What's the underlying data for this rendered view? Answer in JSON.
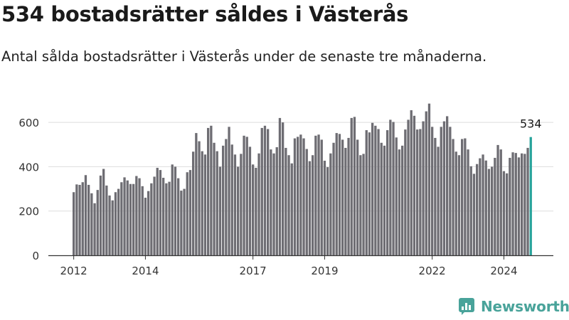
{
  "header": {
    "title": "534 bostadsrätter såldes i Västerås",
    "subtitle": "Antal sålda bostadsrätter i Västerås under de senaste tre månaderna."
  },
  "brand": {
    "name": "Newsworthy",
    "color": "#49a39a"
  },
  "colors": {
    "bar": "#6e6d73",
    "highlight": "#27a39b",
    "grid": "#dddddd",
    "axis": "#333333"
  },
  "chart_data": {
    "type": "bar",
    "title": "534 bostadsrätter såldes i Västerås",
    "subtitle": "Antal sålda bostadsrätter i Västerås under de senaste tre månaderna.",
    "xlabel": "",
    "ylabel": "",
    "ylim": [
      0,
      700
    ],
    "yticks": [
      0,
      200,
      400,
      600
    ],
    "grid": true,
    "x_start": {
      "year": 2012,
      "month": 1
    },
    "xticks": [
      {
        "label": "2012",
        "index": 0
      },
      {
        "label": "2014",
        "index": 24
      },
      {
        "label": "2017",
        "index": 60
      },
      {
        "label": "2019",
        "index": 84
      },
      {
        "label": "2022",
        "index": 120
      },
      {
        "label": "2024",
        "index": 144
      }
    ],
    "values": [
      285,
      320,
      318,
      330,
      362,
      318,
      280,
      235,
      295,
      360,
      390,
      315,
      270,
      248,
      285,
      300,
      330,
      352,
      338,
      322,
      322,
      358,
      348,
      312,
      260,
      290,
      325,
      355,
      395,
      385,
      350,
      325,
      332,
      410,
      400,
      348,
      292,
      300,
      375,
      385,
      468,
      552,
      515,
      470,
      455,
      575,
      585,
      508,
      470,
      400,
      495,
      525,
      580,
      500,
      455,
      400,
      458,
      540,
      535,
      490,
      410,
      395,
      460,
      575,
      585,
      570,
      478,
      460,
      488,
      620,
      600,
      485,
      452,
      415,
      528,
      535,
      545,
      528,
      480,
      425,
      452,
      540,
      545,
      522,
      427,
      398,
      460,
      508,
      552,
      548,
      522,
      485,
      530,
      620,
      625,
      522,
      452,
      458,
      565,
      555,
      598,
      585,
      570,
      508,
      495,
      565,
      612,
      602,
      532,
      478,
      495,
      568,
      612,
      655,
      630,
      568,
      570,
      605,
      650,
      685,
      580,
      530,
      490,
      580,
      605,
      628,
      580,
      525,
      468,
      452,
      525,
      528,
      478,
      402,
      368,
      412,
      438,
      455,
      428,
      390,
      400,
      440,
      498,
      478,
      380,
      370,
      440,
      465,
      462,
      442,
      460,
      458,
      485,
      534
    ],
    "highlight": {
      "index": 153,
      "label": "534"
    }
  }
}
